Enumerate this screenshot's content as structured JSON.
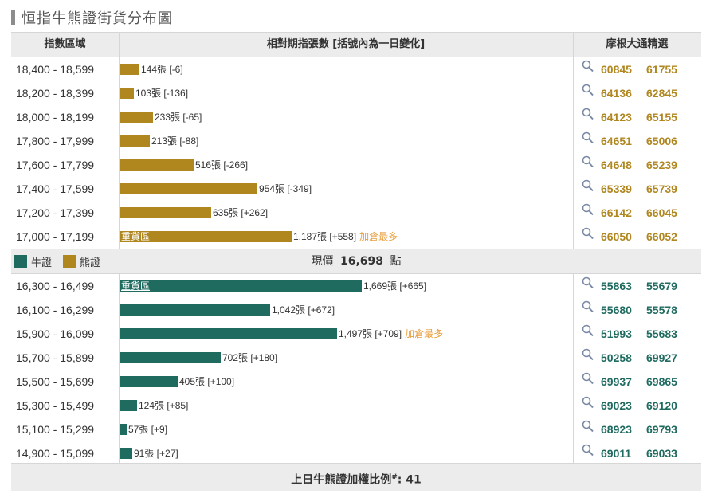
{
  "title": "恒指牛熊證街貨分布圖",
  "header": {
    "col_range": "指數區域",
    "col_bars": "相對期指張數 [括號內為一日變化]",
    "col_picks": "摩根大通精選"
  },
  "colors": {
    "bear": "#b0861f",
    "bull": "#1f6b60",
    "note": "#e8a040"
  },
  "icons": {
    "search": "search-icon"
  },
  "scale_max_contracts": 1669,
  "bear_rows": [
    {
      "range": "18,400 - 18,599",
      "contracts": 144,
      "label": "144張 [-6]",
      "tag": "",
      "note": "",
      "codes": [
        "60845",
        "61755"
      ]
    },
    {
      "range": "18,200 - 18,399",
      "contracts": 103,
      "label": "103張 [-136]",
      "tag": "",
      "note": "",
      "codes": [
        "64136",
        "62845"
      ]
    },
    {
      "range": "18,000 - 18,199",
      "contracts": 233,
      "label": "233張 [-65]",
      "tag": "",
      "note": "",
      "codes": [
        "64123",
        "65155"
      ]
    },
    {
      "range": "17,800 - 17,999",
      "contracts": 213,
      "label": "213張 [-88]",
      "tag": "",
      "note": "",
      "codes": [
        "64651",
        "65006"
      ]
    },
    {
      "range": "17,600 - 17,799",
      "contracts": 516,
      "label": "516張 [-266]",
      "tag": "",
      "note": "",
      "codes": [
        "64648",
        "65239"
      ]
    },
    {
      "range": "17,400 - 17,599",
      "contracts": 954,
      "label": "954張 [-349]",
      "tag": "",
      "note": "",
      "codes": [
        "65339",
        "65739"
      ]
    },
    {
      "range": "17,200 - 17,399",
      "contracts": 635,
      "label": "635張 [+262]",
      "tag": "",
      "note": "",
      "codes": [
        "66142",
        "66045"
      ]
    },
    {
      "range": "17,000 - 17,199",
      "contracts": 1187,
      "label": "1,187張 [+558]",
      "tag": "重貨區",
      "note": "加倉最多",
      "codes": [
        "66050",
        "66052"
      ]
    }
  ],
  "legend": {
    "bull": "牛證",
    "bear": "熊證"
  },
  "current_price": {
    "label": "現價",
    "value": "16,698",
    "unit": "點"
  },
  "bull_rows": [
    {
      "range": "16,300 - 16,499",
      "contracts": 1669,
      "label": "1,669張 [+665]",
      "tag": "重貨區",
      "note": "",
      "codes": [
        "55863",
        "55679"
      ]
    },
    {
      "range": "16,100 - 16,299",
      "contracts": 1042,
      "label": "1,042張 [+672]",
      "tag": "",
      "note": "",
      "codes": [
        "55680",
        "55578"
      ]
    },
    {
      "range": "15,900 - 16,099",
      "contracts": 1497,
      "label": "1,497張 [+709]",
      "tag": "",
      "note": "加倉最多",
      "codes": [
        "51993",
        "55683"
      ]
    },
    {
      "range": "15,700 - 15,899",
      "contracts": 702,
      "label": "702張 [+180]",
      "tag": "",
      "note": "",
      "codes": [
        "50258",
        "69927"
      ]
    },
    {
      "range": "15,500 - 15,699",
      "contracts": 405,
      "label": "405張 [+100]",
      "tag": "",
      "note": "",
      "codes": [
        "69937",
        "69865"
      ]
    },
    {
      "range": "15,300 - 15,499",
      "contracts": 124,
      "label": "124張 [+85]",
      "tag": "",
      "note": "",
      "codes": [
        "69023",
        "69120"
      ]
    },
    {
      "range": "15,100 - 15,299",
      "contracts": 57,
      "label": "57張 [+9]",
      "tag": "",
      "note": "",
      "codes": [
        "68923",
        "69793"
      ]
    },
    {
      "range": "14,900 - 15,099",
      "contracts": 91,
      "label": "91張 [+27]",
      "tag": "",
      "note": "",
      "codes": [
        "69011",
        "69033"
      ]
    }
  ],
  "footer": {
    "label": "上日牛熊證加權比例",
    "marker": "#",
    "value": ": 41"
  }
}
